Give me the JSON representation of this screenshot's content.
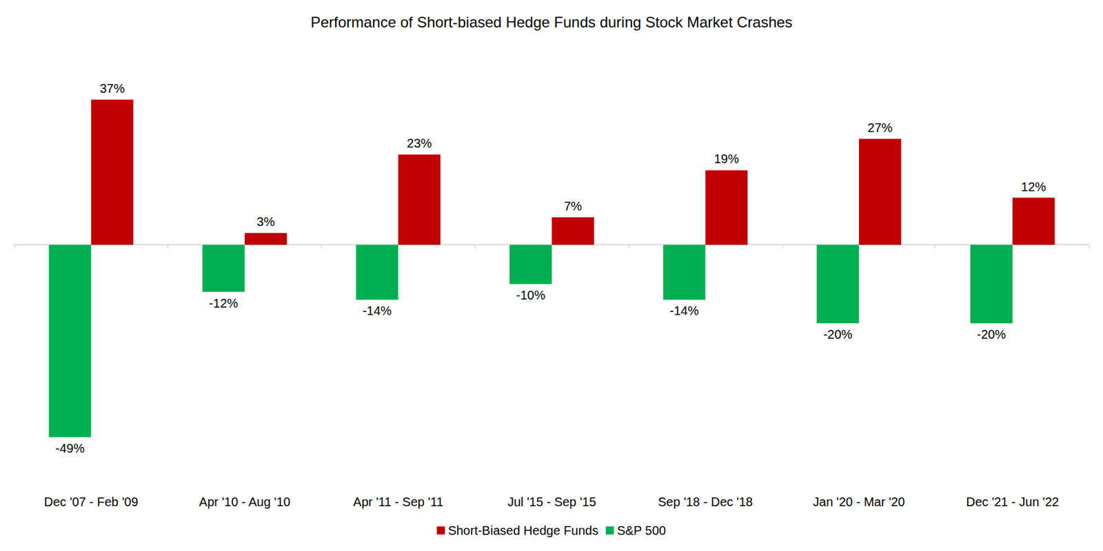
{
  "chart_data": {
    "type": "bar",
    "title": "Performance of Short-biased Hedge Funds during Stock Market Crashes",
    "categories": [
      "Dec '07 - Feb '09",
      "Apr '10 - Aug '10",
      "Apr '11 - Sep '11",
      "Jul '15 - Sep '15",
      "Sep '18 - Dec '18",
      "Jan '20 - Mar '20",
      "Dec '21 - Jun '22"
    ],
    "series": [
      {
        "name": "S&P 500",
        "color": "#00b050",
        "values": [
          -49,
          -12,
          -14,
          -10,
          -14,
          -20,
          -20
        ],
        "value_labels": [
          "-49%",
          "-12%",
          "-14%",
          "-10%",
          "-14%",
          "-20%",
          "-20%"
        ]
      },
      {
        "name": "Short-Biased Hedge Funds",
        "color": "#c00000",
        "values": [
          37,
          3,
          23,
          7,
          19,
          27,
          12
        ],
        "value_labels": [
          "37%",
          "3%",
          "23%",
          "7%",
          "19%",
          "27%",
          "12%"
        ]
      }
    ],
    "ylim": [
      -55,
      40
    ],
    "grid": false,
    "legend": "bottom",
    "data_labels": true,
    "tick_labels": "x"
  }
}
